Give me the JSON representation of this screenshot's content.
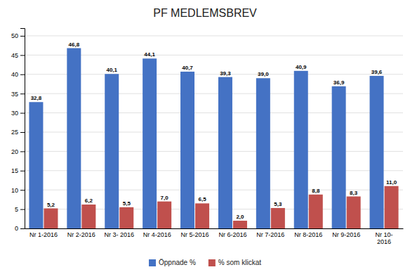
{
  "chart_data": {
    "type": "bar",
    "title": "PF MEDLEMSBREV",
    "categories": [
      "Nr 1-2016",
      "Nr 2-2016",
      "Nr 3- 2016",
      "Nr 4-2016",
      "Nr 5-2016",
      "Nr 6-2016",
      "Nr 7-2016",
      "Nr 8-2016",
      "Nr 9-2016",
      "Nr 10-\n2016"
    ],
    "series": [
      {
        "name": "Öppnade %",
        "color": "#4472C4",
        "values": [
          32.8,
          46.8,
          40.1,
          44.1,
          40.7,
          39.3,
          39.0,
          40.9,
          36.9,
          39.6
        ],
        "value_labels": [
          "32,8",
          "46,8",
          "40,1",
          "44,1",
          "40,7",
          "39,3",
          "39,0",
          "40,9",
          "36,9",
          "39,6"
        ]
      },
      {
        "name": "% som klickat",
        "color": "#C0504D",
        "values": [
          5.2,
          6.2,
          5.5,
          7.0,
          6.5,
          2.0,
          5.3,
          8.8,
          8.3,
          11.0
        ],
        "value_labels": [
          "5,2",
          "6,2",
          "5,5",
          "7,0",
          "6,5",
          "2,0",
          "5,3",
          "8,8",
          "8,3",
          "11,0"
        ]
      }
    ],
    "ylim": [
      0,
      52
    ],
    "yticks": [
      0,
      5,
      10,
      15,
      20,
      25,
      30,
      35,
      40,
      45,
      50
    ],
    "grid": true,
    "legend": "bottom",
    "data_labels": true
  }
}
